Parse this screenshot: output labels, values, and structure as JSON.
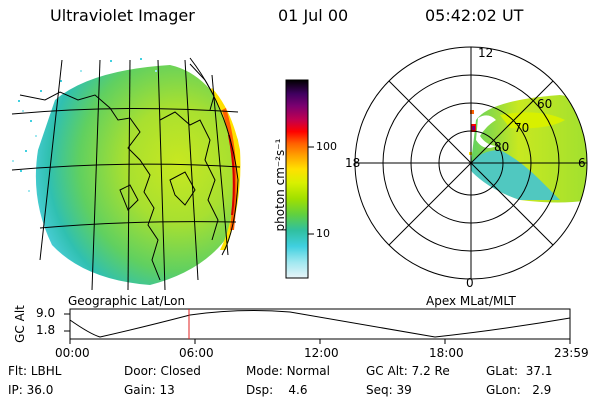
{
  "header": {
    "title": "Ultraviolet Imager",
    "date": "01 Jul 00",
    "time": "05:42:02 UT"
  },
  "colorbar": {
    "unit_label": "photon cm⁻²s⁻¹",
    "ticks": [
      "100",
      "10"
    ],
    "colors": [
      "#000000",
      "#400060",
      "#7a0070",
      "#c00050",
      "#ff0000",
      "#ff6000",
      "#ffa000",
      "#ffe000",
      "#d8f000",
      "#a0e000",
      "#60d040",
      "#30c0a0",
      "#40d0e0",
      "#a0e8f0",
      "#e8f4f8"
    ]
  },
  "polar": {
    "mlt_labels": {
      "top": "12",
      "left": "18",
      "right": "6",
      "bottom": "0"
    },
    "mlat_labels": [
      "60",
      "70",
      "80"
    ]
  },
  "labels": {
    "left_caption": "Geographic Lat/Lon",
    "right_caption": "Apex MLat/MLT"
  },
  "orbit": {
    "axis_label": "GC Alt",
    "y_ticks": [
      "9.0",
      "1.8"
    ],
    "x_ticks": [
      "00:00",
      "06:00",
      "12:00",
      "18:00",
      "23:59"
    ],
    "current_time_fraction": 0.238
  },
  "status": {
    "row1": [
      {
        "label": "Flt:",
        "value": "LBHL"
      },
      {
        "label": "Door:",
        "value": "Closed"
      },
      {
        "label": "Mode:",
        "value": "Normal"
      },
      {
        "label": "GC Alt:",
        "value": "7.2 Re"
      },
      {
        "label": "GLat:",
        "value": "37.1"
      }
    ],
    "row2": [
      {
        "label": "IP:",
        "value": "36.0"
      },
      {
        "label": "Gain:",
        "value": "13"
      },
      {
        "label": "Dsp:",
        "value": "4.6"
      },
      {
        "label": "Seq:",
        "value": "39"
      },
      {
        "label": "GLon:",
        "value": "2.9"
      }
    ]
  }
}
